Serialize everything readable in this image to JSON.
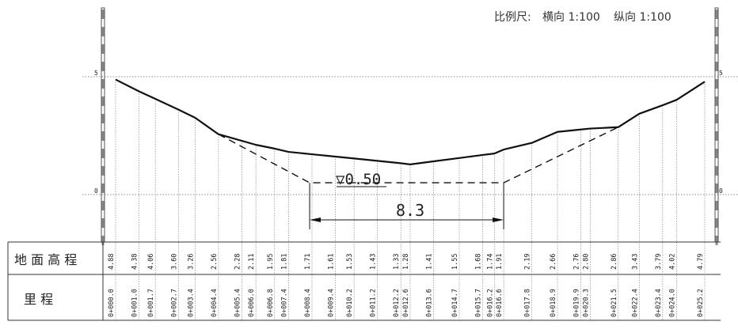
{
  "scale": {
    "label": "比例尺:",
    "horizontal": "横向 1:100",
    "vertical": "纵向 1:100"
  },
  "axis": {
    "ticks": [
      {
        "value": 5,
        "label": "5"
      },
      {
        "value": 0,
        "label": "0"
      }
    ]
  },
  "table": {
    "rows": [
      {
        "label": "地 面 高 程"
      },
      {
        "label": "里        程"
      }
    ]
  },
  "annotations": {
    "water_level": "▽0.50",
    "bottom_width": "8.3"
  },
  "design": {
    "bottom_elevation": 0.5,
    "bottom_start_km": 8.3,
    "bottom_end_km": 16.6,
    "left_top_km": 4.4,
    "right_top_km": 21.5
  },
  "chart_data": {
    "type": "line",
    "title": "",
    "xlabel": "",
    "ylabel": "",
    "ylim": [
      -2,
      8
    ],
    "series": [
      {
        "name": "",
        "points": [
          {
            "station": "0+000.0",
            "x": 0.0,
            "elev": "4.88",
            "y": 4.88
          },
          {
            "station": "0+001.0",
            "x": 1.0,
            "elev": "4.38",
            "y": 4.38
          },
          {
            "station": "0+001.7",
            "x": 1.7,
            "elev": "4.06",
            "y": 4.06
          },
          {
            "station": "0+002.7",
            "x": 2.7,
            "elev": "3.60",
            "y": 3.6
          },
          {
            "station": "0+003.4",
            "x": 3.4,
            "elev": "3.26",
            "y": 3.26
          },
          {
            "station": "0+004.4",
            "x": 4.4,
            "elev": "2.56",
            "y": 2.56
          },
          {
            "station": "0+005.4",
            "x": 5.4,
            "elev": "2.28",
            "y": 2.28
          },
          {
            "station": "0+006.0",
            "x": 6.0,
            "elev": "2.11",
            "y": 2.11
          },
          {
            "station": "0+006.8",
            "x": 6.8,
            "elev": "1.95",
            "y": 1.95
          },
          {
            "station": "0+007.4",
            "x": 7.4,
            "elev": "1.81",
            "y": 1.81
          },
          {
            "station": "0+008.4",
            "x": 8.4,
            "elev": "1.71",
            "y": 1.71
          },
          {
            "station": "0+009.4",
            "x": 9.4,
            "elev": "1.61",
            "y": 1.61
          },
          {
            "station": "0+010.2",
            "x": 10.2,
            "elev": "1.53",
            "y": 1.53
          },
          {
            "station": "0+011.2",
            "x": 11.2,
            "elev": "1.43",
            "y": 1.43
          },
          {
            "station": "0+012.2",
            "x": 12.2,
            "elev": "1.33",
            "y": 1.33
          },
          {
            "station": "0+012.6",
            "x": 12.6,
            "elev": "1.28",
            "y": 1.28
          },
          {
            "station": "0+013.6",
            "x": 13.6,
            "elev": "1.41",
            "y": 1.41
          },
          {
            "station": "0+014.7",
            "x": 14.7,
            "elev": "1.55",
            "y": 1.55
          },
          {
            "station": "0+015.7",
            "x": 15.7,
            "elev": "1.68",
            "y": 1.68
          },
          {
            "station": "0+016.2",
            "x": 16.2,
            "elev": "1.74",
            "y": 1.74
          },
          {
            "station": "0+016.6",
            "x": 16.6,
            "elev": "1.91",
            "y": 1.91
          },
          {
            "station": "0+017.8",
            "x": 17.8,
            "elev": "2.19",
            "y": 2.19
          },
          {
            "station": "0+018.9",
            "x": 18.9,
            "elev": "2.66",
            "y": 2.66
          },
          {
            "station": "0+019.9",
            "x": 19.9,
            "elev": "2.76",
            "y": 2.76
          },
          {
            "station": "0+020.3",
            "x": 20.3,
            "elev": "2.80",
            "y": 2.8
          },
          {
            "station": "0+021.5",
            "x": 21.5,
            "elev": "2.86",
            "y": 2.86
          },
          {
            "station": "0+022.4",
            "x": 22.4,
            "elev": "3.43",
            "y": 3.43
          },
          {
            "station": "0+023.4",
            "x": 23.4,
            "elev": "3.79",
            "y": 3.79
          },
          {
            "station": "0+024.0",
            "x": 24.0,
            "elev": "4.02",
            "y": 4.02
          },
          {
            "station": "0+025.2",
            "x": 25.2,
            "elev": "4.79",
            "y": 4.79
          }
        ]
      }
    ]
  }
}
